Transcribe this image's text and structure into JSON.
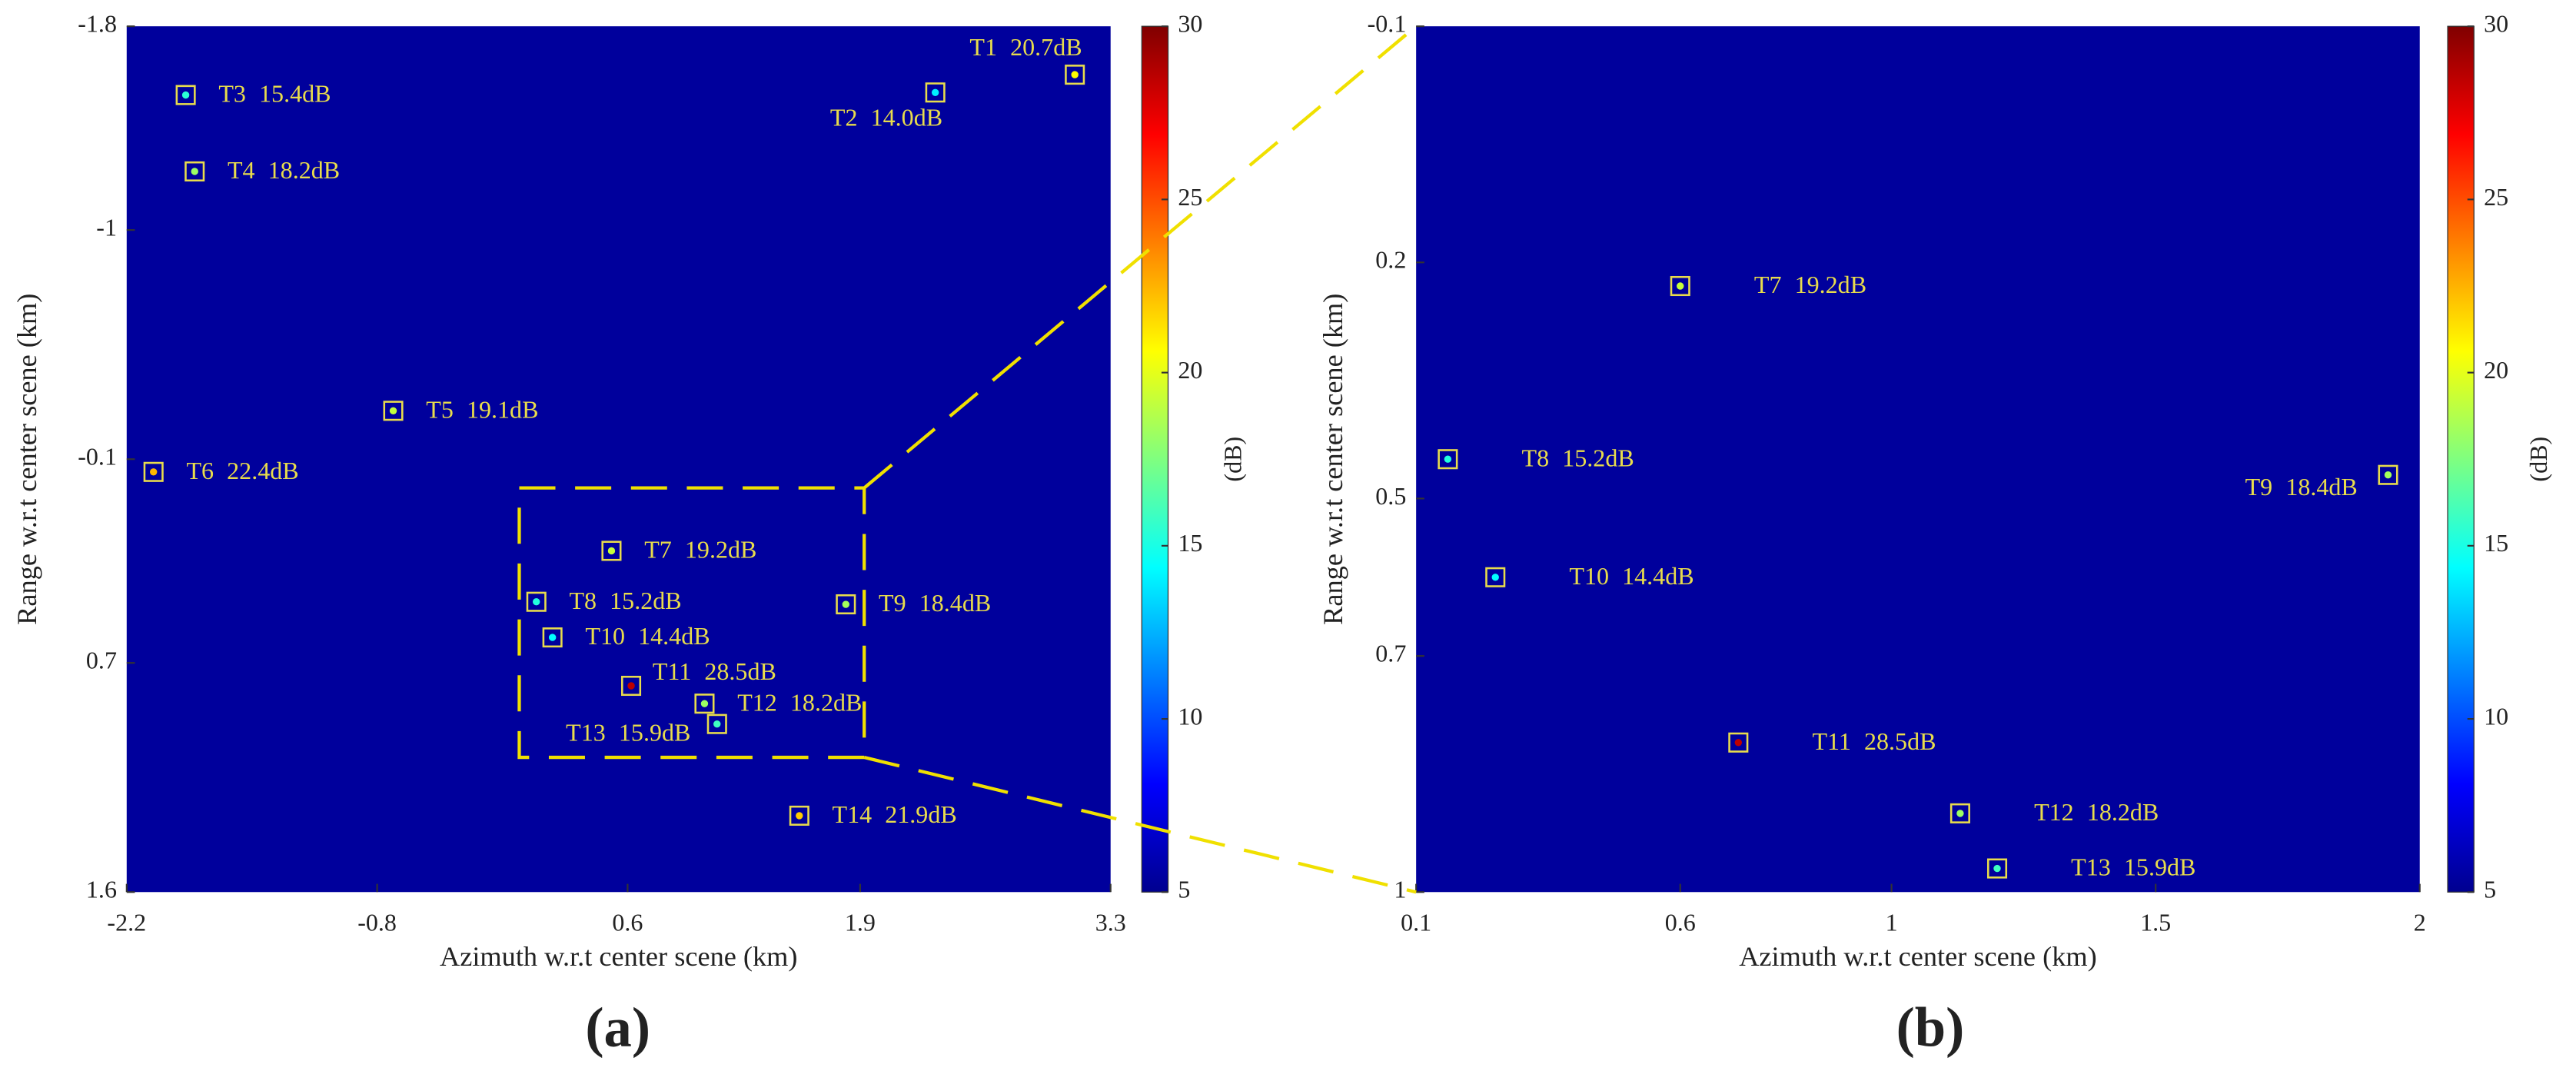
{
  "chart_data": [
    {
      "type": "scatter",
      "panel_label": "(a)",
      "x_label": "Azimuth w.r.t center scene (km)",
      "y_label": "Range w.r.t center scene (km)",
      "xlim": [
        -2.2,
        3.3
      ],
      "ylim": [
        -1.8,
        1.6
      ],
      "y_inverted": true,
      "xticks": [
        -2.2,
        -0.8,
        0.6,
        1.9,
        3.3
      ],
      "yticks": [
        -1.8,
        -1,
        -0.1,
        0.7,
        1.6
      ],
      "background": "#00009c",
      "marker_color": "#e8dc4c",
      "colorbar": {
        "label": "(dB)",
        "lim": [
          5,
          30
        ],
        "ticks": [
          5,
          10,
          15,
          20,
          25,
          30
        ],
        "colormap": "jet"
      },
      "names": [
        "T1",
        "T2",
        "T3",
        "T4",
        "T5",
        "T6",
        "T7",
        "T8",
        "T9",
        "T10",
        "T11",
        "T12",
        "T13",
        "T14"
      ],
      "x": [
        3.1,
        2.32,
        -1.87,
        -1.82,
        -0.71,
        -2.05,
        0.51,
        0.09,
        1.82,
        0.18,
        0.62,
        1.03,
        1.1,
        1.56
      ],
      "y": [
        -1.61,
        -1.54,
        -1.53,
        -1.23,
        -0.29,
        -0.05,
        0.26,
        0.46,
        0.47,
        0.6,
        0.79,
        0.86,
        0.94,
        1.3
      ],
      "values": [
        20.7,
        14.0,
        15.4,
        18.2,
        19.1,
        22.4,
        19.2,
        15.2,
        18.4,
        14.4,
        28.5,
        18.2,
        15.9,
        21.9
      ],
      "value_labels": [
        "20.7dB",
        "14.0dB",
        "15.4dB",
        "18.2dB",
        "19.1dB",
        "22.4dB",
        "19.2dB",
        "15.2dB",
        "18.4dB",
        "14.4dB",
        "28.5dB",
        "18.2dB",
        "15.9dB",
        "21.9dB"
      ]
    },
    {
      "type": "scatter",
      "panel_label": "(b)",
      "x_label": "Azimuth w.r.t center scene (km)",
      "y_label": "Range w.r.t center scene (km)",
      "xlim": [
        0.1,
        2
      ],
      "ylim": [
        -0.1,
        1
      ],
      "y_inverted": true,
      "xticks": [
        0.1,
        0.6,
        1,
        1.5,
        2
      ],
      "yticks": [
        -0.1,
        0.2,
        0.5,
        0.7,
        1
      ],
      "background": "#00009c",
      "marker_color": "#e8dc4c",
      "colorbar": {
        "label": "(dB)",
        "lim": [
          5,
          30
        ],
        "ticks": [
          5,
          10,
          15,
          20,
          25,
          30
        ],
        "colormap": "jet"
      },
      "names": [
        "T7",
        "T8",
        "T9",
        "T10",
        "T11",
        "T12",
        "T13"
      ],
      "x": [
        0.6,
        0.16,
        1.94,
        0.25,
        0.71,
        1.13,
        1.2
      ],
      "y": [
        0.23,
        0.45,
        0.47,
        0.6,
        0.81,
        0.9,
        0.97
      ],
      "values": [
        19.2,
        15.2,
        18.4,
        14.4,
        28.5,
        18.2,
        15.9
      ],
      "value_labels": [
        "19.2dB",
        "15.2dB",
        "18.4dB",
        "14.4dB",
        "28.5dB",
        "18.2dB",
        "15.9dB"
      ]
    }
  ]
}
